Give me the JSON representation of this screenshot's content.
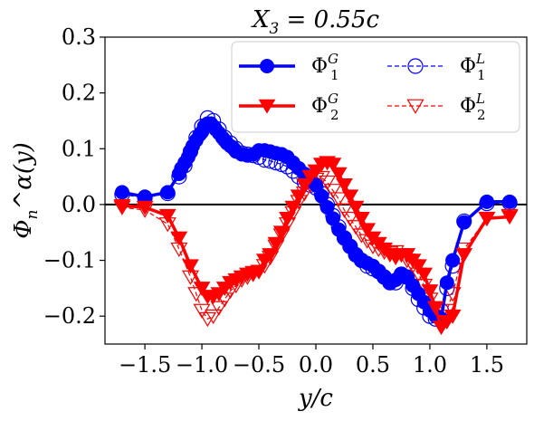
{
  "chart_data": {
    "type": "line",
    "title": "X_3 = 0.55c",
    "xlabel": "y/c",
    "ylabel": "Φ_n^α(y)",
    "xlim": [
      -1.85,
      1.85
    ],
    "ylim": [
      -0.25,
      0.3
    ],
    "xticks": [
      -1.5,
      -1.0,
      -0.5,
      0.0,
      0.5,
      1.0,
      1.5
    ],
    "yticks": [
      -0.2,
      -0.1,
      0.0,
      0.1,
      0.2,
      0.3
    ],
    "xtick_labels": [
      "−1.5",
      "−1.0",
      "−0.5",
      "0.0",
      "0.5",
      "1.0",
      "1.5"
    ],
    "ytick_labels": [
      "−0.2",
      "−0.1",
      "0.0",
      "0.1",
      "0.2",
      "0.3"
    ],
    "hline_y": 0.0,
    "legend_placement": "top-right",
    "series": [
      {
        "name": "Φ_1^G",
        "color": "#0000ff",
        "marker": "circle-filled",
        "style": "solid-thick",
        "x": [
          -1.7,
          -1.5,
          -1.3,
          -1.2,
          -1.18,
          -1.15,
          -1.12,
          -1.1,
          -1.08,
          -1.05,
          -1.02,
          -1.0,
          -0.98,
          -0.95,
          -0.92,
          -0.9,
          -0.88,
          -0.85,
          -0.82,
          -0.8,
          -0.78,
          -0.75,
          -0.72,
          -0.7,
          -0.65,
          -0.6,
          -0.55,
          -0.5,
          -0.45,
          -0.4,
          -0.35,
          -0.3,
          -0.25,
          -0.2,
          -0.15,
          -0.1,
          -0.05,
          0.0,
          0.05,
          0.1,
          0.15,
          0.2,
          0.25,
          0.3,
          0.35,
          0.4,
          0.45,
          0.5,
          0.55,
          0.6,
          0.65,
          0.7,
          0.75,
          0.8,
          0.85,
          0.9,
          0.95,
          1.0,
          1.05,
          1.1,
          1.15,
          1.2,
          1.3,
          1.5,
          1.7
        ],
        "y": [
          0.022,
          0.014,
          0.022,
          0.055,
          0.065,
          0.075,
          0.085,
          0.095,
          0.105,
          0.115,
          0.125,
          0.13,
          0.14,
          0.145,
          0.145,
          0.14,
          0.135,
          0.128,
          0.12,
          0.115,
          0.11,
          0.105,
          0.1,
          0.095,
          0.09,
          0.088,
          0.09,
          0.097,
          0.097,
          0.095,
          0.092,
          0.09,
          0.085,
          0.075,
          0.065,
          0.055,
          0.045,
          0.035,
          0.015,
          -0.005,
          -0.025,
          -0.045,
          -0.06,
          -0.075,
          -0.09,
          -0.1,
          -0.105,
          -0.11,
          -0.12,
          -0.13,
          -0.14,
          -0.135,
          -0.125,
          -0.13,
          -0.145,
          -0.16,
          -0.175,
          -0.19,
          -0.2,
          -0.205,
          -0.14,
          -0.1,
          -0.032,
          0.005,
          0.005
        ]
      },
      {
        "name": "Φ_2^G",
        "color": "#ff0000",
        "marker": "triangle-down-filled",
        "style": "solid-thick",
        "x": [
          -1.7,
          -1.5,
          -1.3,
          -1.2,
          -1.1,
          -1.0,
          -0.95,
          -0.9,
          -0.85,
          -0.8,
          -0.75,
          -0.7,
          -0.65,
          -0.6,
          -0.55,
          -0.5,
          -0.45,
          -0.4,
          -0.35,
          -0.3,
          -0.25,
          -0.2,
          -0.15,
          -0.1,
          -0.05,
          0.0,
          0.05,
          0.1,
          0.15,
          0.2,
          0.25,
          0.3,
          0.35,
          0.4,
          0.45,
          0.5,
          0.55,
          0.6,
          0.65,
          0.7,
          0.75,
          0.8,
          0.85,
          0.9,
          0.95,
          1.0,
          1.05,
          1.1,
          1.15,
          1.2,
          1.3,
          1.5,
          1.7
        ],
        "y": [
          -0.002,
          -0.005,
          -0.02,
          -0.06,
          -0.11,
          -0.15,
          -0.165,
          -0.165,
          -0.16,
          -0.15,
          -0.14,
          -0.135,
          -0.13,
          -0.125,
          -0.122,
          -0.12,
          -0.1,
          -0.09,
          -0.07,
          -0.05,
          -0.025,
          -0.005,
          0.015,
          0.035,
          0.05,
          0.06,
          0.072,
          0.075,
          0.072,
          0.055,
          0.035,
          0.015,
          -0.005,
          -0.025,
          -0.045,
          -0.06,
          -0.07,
          -0.08,
          -0.09,
          -0.095,
          -0.09,
          -0.09,
          -0.1,
          -0.11,
          -0.125,
          -0.155,
          -0.185,
          -0.22,
          -0.21,
          -0.2,
          -0.09,
          -0.025,
          -0.022
        ]
      },
      {
        "name": "Φ_1^L",
        "color": "#0000ff",
        "marker": "circle-open",
        "style": "dashed-thin",
        "x": [
          -1.7,
          -1.5,
          -1.3,
          -1.2,
          -1.15,
          -1.1,
          -1.05,
          -1.0,
          -0.95,
          -0.9,
          -0.85,
          -0.8,
          -0.75,
          -0.7,
          -0.65,
          -0.6,
          -0.55,
          -0.5,
          -0.45,
          -0.4,
          -0.35,
          -0.3,
          -0.25,
          -0.2,
          -0.15,
          -0.1,
          -0.05,
          0.0,
          0.05,
          0.1,
          0.15,
          0.2,
          0.25,
          0.3,
          0.35,
          0.4,
          0.45,
          0.5,
          0.55,
          0.6,
          0.65,
          0.7,
          0.75,
          0.8,
          0.85,
          0.9,
          0.95,
          1.0,
          1.05,
          1.1,
          1.15,
          1.2,
          1.3,
          1.5,
          1.7
        ],
        "y": [
          0.018,
          0.012,
          0.02,
          0.05,
          0.07,
          0.095,
          0.12,
          0.14,
          0.155,
          0.15,
          0.135,
          0.12,
          0.11,
          0.1,
          0.092,
          0.09,
          0.088,
          0.085,
          0.08,
          0.078,
          0.075,
          0.072,
          0.068,
          0.06,
          0.05,
          0.04,
          0.035,
          0.03,
          0.02,
          0.0,
          -0.02,
          -0.04,
          -0.06,
          -0.075,
          -0.09,
          -0.1,
          -0.11,
          -0.115,
          -0.12,
          -0.13,
          -0.14,
          -0.14,
          -0.125,
          -0.13,
          -0.15,
          -0.17,
          -0.185,
          -0.2,
          -0.205,
          -0.19,
          -0.15,
          -0.11,
          -0.03,
          0.002,
          0.003
        ]
      },
      {
        "name": "Φ_2^L",
        "color": "#ff0000",
        "marker": "triangle-down-open",
        "style": "dashed-thin",
        "x": [
          -1.7,
          -1.5,
          -1.3,
          -1.2,
          -1.1,
          -1.05,
          -1.0,
          -0.95,
          -0.9,
          -0.85,
          -0.8,
          -0.75,
          -0.7,
          -0.65,
          -0.6,
          -0.55,
          -0.5,
          -0.45,
          -0.4,
          -0.35,
          -0.3,
          -0.25,
          -0.2,
          -0.15,
          -0.1,
          -0.05,
          0.0,
          0.05,
          0.1,
          0.15,
          0.2,
          0.25,
          0.3,
          0.35,
          0.4,
          0.45,
          0.5,
          0.55,
          0.6,
          0.65,
          0.7,
          0.75,
          0.8,
          0.85,
          0.9,
          0.95,
          1.0,
          1.05,
          1.1,
          1.15,
          1.2,
          1.3,
          1.5,
          1.7
        ],
        "y": [
          -0.005,
          -0.01,
          -0.035,
          -0.08,
          -0.13,
          -0.16,
          -0.19,
          -0.205,
          -0.2,
          -0.185,
          -0.17,
          -0.155,
          -0.145,
          -0.135,
          -0.13,
          -0.125,
          -0.12,
          -0.11,
          -0.095,
          -0.075,
          -0.055,
          -0.035,
          -0.015,
          0.005,
          0.02,
          0.035,
          0.045,
          0.048,
          0.04,
          0.025,
          0.01,
          -0.01,
          -0.025,
          -0.04,
          -0.055,
          -0.065,
          -0.075,
          -0.08,
          -0.085,
          -0.087,
          -0.085,
          -0.09,
          -0.1,
          -0.11,
          -0.125,
          -0.145,
          -0.17,
          -0.2,
          -0.21,
          -0.19,
          -0.16,
          -0.08,
          -0.025,
          -0.02
        ]
      }
    ]
  }
}
